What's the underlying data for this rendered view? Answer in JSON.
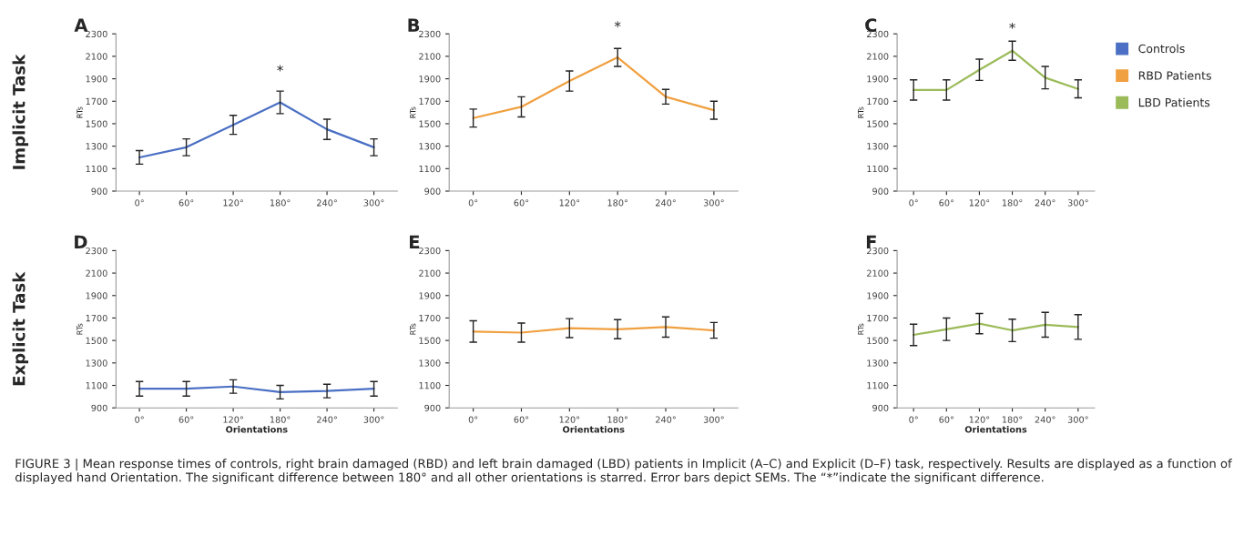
{
  "chart_data": [
    {
      "type": "line",
      "title": "A",
      "ylabel": "RTs",
      "categories": [
        "0°",
        "60°",
        "120°",
        "180°",
        "240°",
        "300°"
      ],
      "ylim": [
        900,
        2300
      ],
      "yticks": [
        900,
        1100,
        1300,
        1500,
        1700,
        1900,
        2100,
        2300
      ],
      "grid": false,
      "marker": "none",
      "line_style": "solid",
      "series": [
        {
          "name": "Controls",
          "color": "#4a6fc4",
          "values": [
            1200,
            1290,
            1490,
            1690,
            1450,
            1290
          ],
          "errors": [
            60,
            75,
            85,
            100,
            90,
            75
          ]
        }
      ],
      "annotations": [
        "Implicit Task",
        "*"
      ]
    },
    {
      "type": "line",
      "title": "B",
      "ylabel": "RTs",
      "categories": [
        "0°",
        "60°",
        "120°",
        "180°",
        "240°",
        "300°"
      ],
      "ylim": [
        900,
        2300
      ],
      "yticks": [
        900,
        1100,
        1300,
        1500,
        1700,
        1900,
        2100,
        2300
      ],
      "grid": false,
      "marker": "none",
      "line_style": "solid",
      "series": [
        {
          "name": "RBD Patients",
          "color": "#f0a040",
          "values": [
            1550,
            1650,
            1880,
            2090,
            1740,
            1620
          ],
          "errors": [
            80,
            90,
            90,
            80,
            65,
            80
          ]
        }
      ],
      "annotations": [
        "*"
      ]
    },
    {
      "type": "line",
      "title": "C",
      "ylabel": "RTs",
      "categories": [
        "0°",
        "60°",
        "120°",
        "180°",
        "240°",
        "300°"
      ],
      "ylim": [
        900,
        2300
      ],
      "yticks": [
        900,
        1100,
        1300,
        1500,
        1700,
        1900,
        2100,
        2300
      ],
      "grid": false,
      "marker": "none",
      "line_style": "solid",
      "legend": "right",
      "series": [
        {
          "name": "LBD Patients",
          "color": "#9bbb59",
          "values": [
            1800,
            1800,
            1980,
            2150,
            1910,
            1810
          ],
          "errors": [
            90,
            90,
            95,
            85,
            100,
            80
          ]
        }
      ],
      "annotations": [
        "*"
      ]
    },
    {
      "type": "line",
      "title": "D",
      "ylabel": "RTs",
      "xlabel": "Orientations",
      "categories": [
        "0°",
        "60°",
        "120°",
        "180°",
        "240°",
        "300°"
      ],
      "ylim": [
        900,
        2300
      ],
      "yticks": [
        900,
        1100,
        1300,
        1500,
        1700,
        1900,
        2100,
        2300
      ],
      "grid": false,
      "marker": "none",
      "line_style": "solid",
      "series": [
        {
          "color": "#4a6fc4",
          "values": [
            1070,
            1070,
            1090,
            1040,
            1050,
            1070
          ],
          "errors": [
            65,
            65,
            60,
            60,
            60,
            65
          ]
        }
      ],
      "annotations": [
        "Explicit Task"
      ]
    },
    {
      "type": "line",
      "title": "E",
      "ylabel": "RTs",
      "xlabel": "Orientations",
      "categories": [
        "0°",
        "60°",
        "120°",
        "180°",
        "240°",
        "300°"
      ],
      "ylim": [
        900,
        2300
      ],
      "yticks": [
        900,
        1100,
        1300,
        1500,
        1700,
        1900,
        2100,
        2300
      ],
      "grid": false,
      "marker": "none",
      "line_style": "solid",
      "series": [
        {
          "color": "#f0a040",
          "values": [
            1580,
            1570,
            1610,
            1600,
            1620,
            1590
          ],
          "errors": [
            95,
            85,
            85,
            85,
            90,
            70
          ]
        }
      ]
    },
    {
      "type": "line",
      "title": "F",
      "ylabel": "RTs",
      "xlabel": "Orientations",
      "categories": [
        "0°",
        "60°",
        "120°",
        "180°",
        "240°",
        "300°"
      ],
      "ylim": [
        900,
        2300
      ],
      "yticks": [
        900,
        1100,
        1300,
        1500,
        1700,
        1900,
        2100,
        2300
      ],
      "grid": false,
      "marker": "none",
      "line_style": "solid",
      "series": [
        {
          "color": "#9bbb59",
          "values": [
            1550,
            1600,
            1650,
            1590,
            1640,
            1620
          ],
          "errors": [
            95,
            100,
            90,
            100,
            110,
            110
          ]
        }
      ],
      "annotations": [
        "FIGURE 3 | Mean response times of controls, right brain damaged (RBD) and left brain damaged (LBD) patients in Implicit (A–C) and Explicit (D–F) task, respectively. Results are displayed as a function of displayed hand Orientation. The significant difference between 180° and all other orientations is starred. Error bars depict SEMs. The “*”indicate the significant difference."
      ]
    }
  ]
}
